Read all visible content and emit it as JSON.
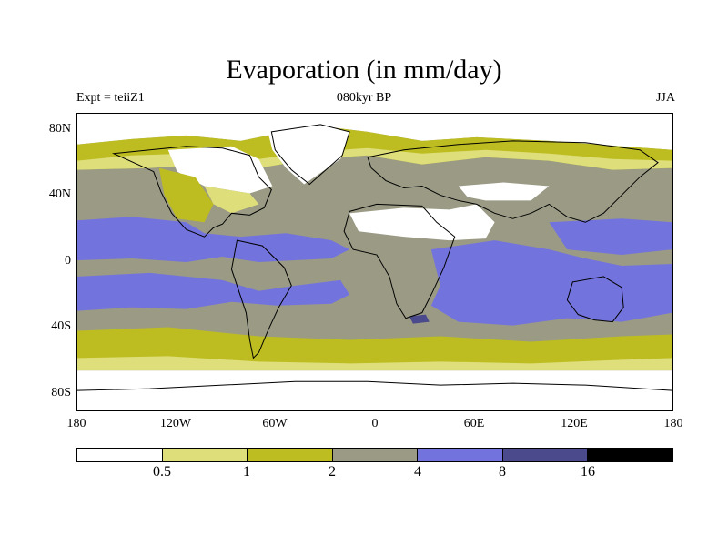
{
  "title": "Evaporation (in mm/day)",
  "subtitle": "080kyr BP",
  "left_label": "Expt = teiiZ1",
  "right_label": "JJA",
  "map": {
    "y_ticks": [
      "80N",
      "40N",
      "0",
      "40S",
      "80S"
    ],
    "x_ticks": [
      "180",
      "120W",
      "60W",
      "0",
      "60E",
      "120E",
      "180"
    ]
  },
  "colorbar": {
    "labels": [
      "0.5",
      "1",
      "2",
      "4",
      "8",
      "16"
    ],
    "colors": [
      "#ffffff",
      "#dede7a",
      "#bdbd21",
      "#9a9a85",
      "#7373de",
      "#4a4a8c",
      "#000000"
    ]
  },
  "palette": {
    "white": "#ffffff",
    "light_yellow": "#dede7a",
    "olive": "#bdbd21",
    "gray": "#9a9a85",
    "blue": "#7373de",
    "dark_blue": "#4a4a8c",
    "black": "#000000"
  }
}
